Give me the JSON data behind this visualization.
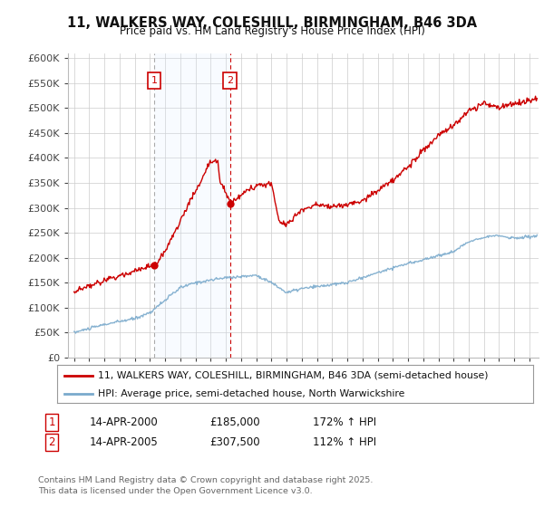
{
  "title": "11, WALKERS WAY, COLESHILL, BIRMINGHAM, B46 3DA",
  "subtitle": "Price paid vs. HM Land Registry's House Price Index (HPI)",
  "background_color": "#ffffff",
  "plot_background": "#ffffff",
  "grid_color": "#cccccc",
  "ylim": [
    0,
    610000
  ],
  "yticks": [
    0,
    50000,
    100000,
    150000,
    200000,
    250000,
    300000,
    350000,
    400000,
    450000,
    500000,
    550000,
    600000
  ],
  "ytick_labels": [
    "£0",
    "£50K",
    "£100K",
    "£150K",
    "£200K",
    "£250K",
    "£300K",
    "£350K",
    "£400K",
    "£450K",
    "£500K",
    "£550K",
    "£600K"
  ],
  "sale1_date": 2000.28,
  "sale1_price": 185000,
  "sale1_label": "1",
  "sale2_date": 2005.28,
  "sale2_price": 307500,
  "sale2_label": "2",
  "red_line_color": "#cc0000",
  "blue_line_color": "#7aaacc",
  "shaded_region_color": "#ddeeff",
  "sale1_vline_color": "#aaaaaa",
  "sale2_vline_color": "#cc0000",
  "legend_entry1": "11, WALKERS WAY, COLESHILL, BIRMINGHAM, B46 3DA (semi-detached house)",
  "legend_entry2": "HPI: Average price, semi-detached house, North Warwickshire",
  "annotation1_num": "1",
  "annotation1_date": "14-APR-2000",
  "annotation1_price": "£185,000",
  "annotation1_hpi": "172% ↑ HPI",
  "annotation2_num": "2",
  "annotation2_date": "14-APR-2005",
  "annotation2_price": "£307,500",
  "annotation2_hpi": "112% ↑ HPI",
  "footnote": "Contains HM Land Registry data © Crown copyright and database right 2025.\nThis data is licensed under the Open Government Licence v3.0."
}
